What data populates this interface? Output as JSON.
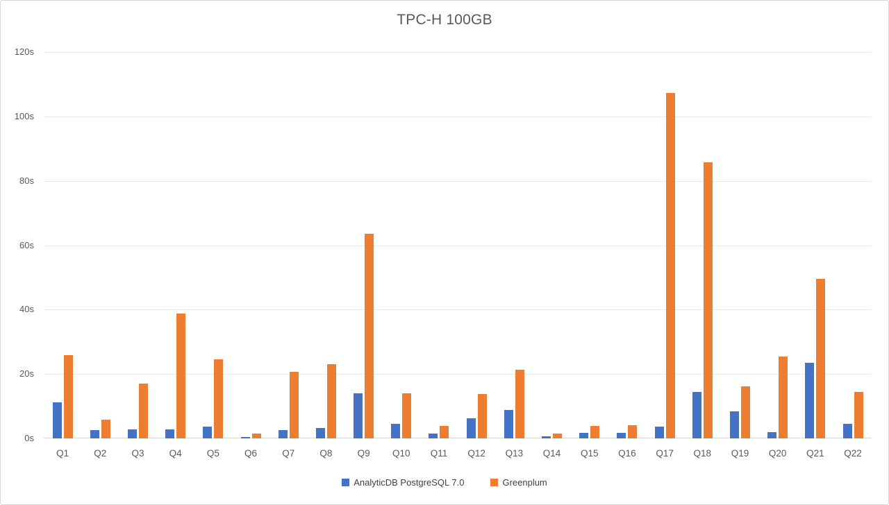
{
  "chart_data": {
    "type": "bar",
    "title": "TPC-H 100GB",
    "categories": [
      "Q1",
      "Q2",
      "Q3",
      "Q4",
      "Q5",
      "Q6",
      "Q7",
      "Q8",
      "Q9",
      "Q10",
      "Q11",
      "Q12",
      "Q13",
      "Q14",
      "Q15",
      "Q16",
      "Q17",
      "Q18",
      "Q19",
      "Q20",
      "Q21",
      "Q22"
    ],
    "series": [
      {
        "name": "AnalyticDB PostgreSQL 7.0",
        "color": "#4472C4",
        "values": [
          11.3,
          2.5,
          2.8,
          2.9,
          3.6,
          0.4,
          2.6,
          3.2,
          14.0,
          4.5,
          1.6,
          6.3,
          8.9,
          0.7,
          1.7,
          1.8,
          3.7,
          14.4,
          8.5,
          2.0,
          23.4,
          4.6
        ]
      },
      {
        "name": "Greenplum",
        "color": "#ED7D31",
        "values": [
          25.9,
          5.8,
          17.1,
          38.8,
          24.5,
          1.5,
          20.6,
          23.0,
          63.5,
          14.0,
          3.9,
          13.8,
          21.3,
          1.5,
          3.8,
          4.2,
          107.2,
          85.8,
          16.1,
          25.5,
          49.6,
          14.4
        ]
      }
    ],
    "ylim": [
      0,
      120
    ],
    "ytick_step": 20,
    "ytick_suffix": "s",
    "ytick_labels": [
      "0s",
      "20s",
      "40s",
      "60s",
      "80s",
      "100s",
      "120s"
    ],
    "grid": true,
    "legend_position": "bottom",
    "colors": {
      "gridline": "#e9e9e9",
      "axis_line": "#d6d6d6",
      "title_text": "#595959",
      "tick_text": "#595959",
      "legend_text": "#404040"
    }
  }
}
